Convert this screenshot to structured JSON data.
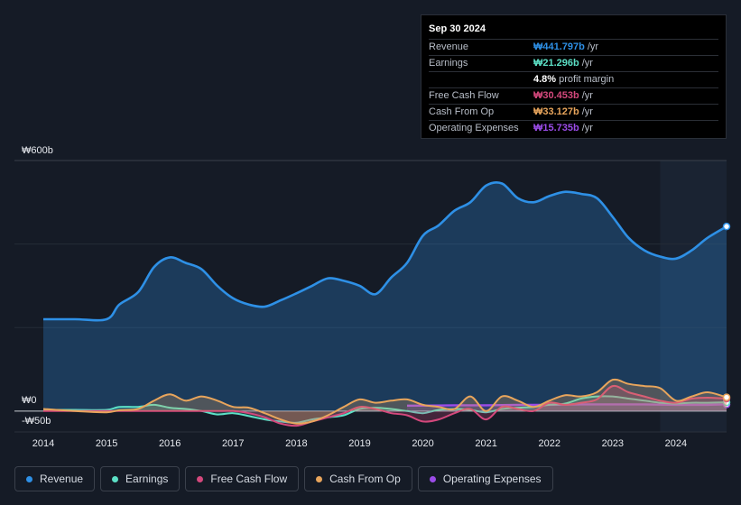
{
  "colors": {
    "revenue": "#2e90e6",
    "earnings": "#5ce0c6",
    "free_cash_flow": "#d4487c",
    "cash_from_op": "#e8a55c",
    "operating_expenses": "#9b4ce8",
    "background": "#151b26"
  },
  "tooltip": {
    "date": "Sep 30 2024",
    "rows": [
      {
        "label": "Revenue",
        "value": "₩441.797b",
        "unit": "/yr",
        "color": "#2e90e6"
      },
      {
        "label": "Earnings",
        "value": "₩21.296b",
        "unit": "/yr",
        "color": "#5ce0c6"
      },
      {
        "label": "",
        "value": "4.8%",
        "unit": "profit margin",
        "color": "#ffffff"
      },
      {
        "label": "Free Cash Flow",
        "value": "₩30.453b",
        "unit": "/yr",
        "color": "#d4487c"
      },
      {
        "label": "Cash From Op",
        "value": "₩33.127b",
        "unit": "/yr",
        "color": "#e8a55c"
      },
      {
        "label": "Operating Expenses",
        "value": "₩15.735b",
        "unit": "/yr",
        "color": "#9b4ce8"
      }
    ]
  },
  "legend": [
    {
      "label": "Revenue",
      "color": "#2e90e6"
    },
    {
      "label": "Earnings",
      "color": "#5ce0c6"
    },
    {
      "label": "Free Cash Flow",
      "color": "#d4487c"
    },
    {
      "label": "Cash From Op",
      "color": "#e8a55c"
    },
    {
      "label": "Operating Expenses",
      "color": "#9b4ce8"
    }
  ],
  "chart_data": {
    "type": "area",
    "y_tick_labels": {
      "top": "₩600b",
      "zero": "₩0",
      "bottom": "-₩50b"
    },
    "ylim": [
      -50,
      600
    ],
    "xlim": [
      2014,
      2024.8
    ],
    "x_tick_labels": [
      "2014",
      "2015",
      "2016",
      "2017",
      "2018",
      "2019",
      "2020",
      "2021",
      "2022",
      "2023",
      "2024"
    ],
    "x_ticks": [
      2014,
      2015,
      2016,
      2017,
      2018,
      2019,
      2020,
      2021,
      2022,
      2023,
      2024
    ],
    "highlight_from": 2023.75,
    "series": [
      {
        "name": "Revenue",
        "key": "revenue",
        "x": [
          2014,
          2014.5,
          2015,
          2015.2,
          2015.5,
          2015.75,
          2016,
          2016.25,
          2016.5,
          2016.75,
          2017,
          2017.25,
          2017.5,
          2017.75,
          2018,
          2018.25,
          2018.5,
          2018.75,
          2019,
          2019.25,
          2019.5,
          2019.75,
          2020,
          2020.25,
          2020.5,
          2020.75,
          2021,
          2021.25,
          2021.5,
          2021.75,
          2022,
          2022.25,
          2022.5,
          2022.75,
          2023,
          2023.25,
          2023.5,
          2023.75,
          2024,
          2024.25,
          2024.5,
          2024.8
        ],
        "values": [
          220,
          220,
          220,
          255,
          285,
          345,
          368,
          355,
          340,
          300,
          270,
          255,
          250,
          265,
          282,
          300,
          318,
          312,
          300,
          280,
          320,
          355,
          420,
          445,
          480,
          500,
          540,
          545,
          510,
          500,
          515,
          525,
          520,
          510,
          465,
          415,
          385,
          370,
          365,
          385,
          415,
          442
        ]
      },
      {
        "name": "Earnings",
        "key": "earnings",
        "x": [
          2014,
          2014.5,
          2015,
          2015.2,
          2015.5,
          2015.75,
          2016,
          2016.25,
          2016.5,
          2016.75,
          2017,
          2017.25,
          2017.5,
          2017.75,
          2018,
          2018.25,
          2018.5,
          2018.75,
          2019,
          2019.25,
          2019.5,
          2019.75,
          2020,
          2020.25,
          2020.5,
          2020.75,
          2021,
          2021.25,
          2021.5,
          2021.75,
          2022,
          2022.25,
          2022.5,
          2022.75,
          2023,
          2023.25,
          2023.5,
          2023.75,
          2024,
          2024.25,
          2024.5,
          2024.8
        ],
        "values": [
          3,
          3,
          3,
          10,
          10,
          15,
          8,
          5,
          0,
          -8,
          -5,
          -12,
          -20,
          -25,
          -28,
          -20,
          -15,
          -10,
          5,
          8,
          5,
          0,
          -5,
          3,
          5,
          3,
          -3,
          5,
          8,
          10,
          15,
          18,
          30,
          35,
          35,
          30,
          25,
          20,
          18,
          20,
          20,
          21
        ]
      },
      {
        "name": "Free Cash Flow",
        "key": "free_cash_flow",
        "x": [
          2014,
          2014.5,
          2015,
          2015.2,
          2015.5,
          2015.75,
          2016,
          2016.25,
          2016.5,
          2016.75,
          2017,
          2017.25,
          2017.5,
          2017.75,
          2018,
          2018.25,
          2018.5,
          2018.75,
          2019,
          2019.25,
          2019.5,
          2019.75,
          2020,
          2020.25,
          2020.5,
          2020.75,
          2021,
          2021.25,
          2021.5,
          2021.75,
          2022,
          2022.25,
          2022.5,
          2022.75,
          2023,
          2023.25,
          2023.5,
          2023.75,
          2024,
          2024.25,
          2024.5,
          2024.8
        ],
        "values": [
          0,
          0,
          0,
          0,
          0,
          0,
          0,
          0,
          0,
          0,
          0,
          -5,
          -15,
          -30,
          -35,
          -25,
          -15,
          -5,
          10,
          5,
          -5,
          -10,
          -25,
          -20,
          -5,
          5,
          -20,
          10,
          5,
          0,
          20,
          15,
          20,
          28,
          60,
          45,
          35,
          25,
          20,
          30,
          32,
          30
        ]
      },
      {
        "name": "Cash From Op",
        "key": "cash_from_op",
        "x": [
          2014,
          2014.5,
          2015,
          2015.2,
          2015.5,
          2015.75,
          2016,
          2016.25,
          2016.5,
          2016.75,
          2017,
          2017.25,
          2017.5,
          2017.75,
          2018,
          2018.25,
          2018.5,
          2018.75,
          2019,
          2019.25,
          2019.5,
          2019.75,
          2020,
          2020.25,
          2020.5,
          2020.75,
          2021,
          2021.25,
          2021.5,
          2021.75,
          2022,
          2022.25,
          2022.5,
          2022.75,
          2023,
          2023.25,
          2023.5,
          2023.75,
          2024,
          2024.25,
          2024.5,
          2024.8
        ],
        "values": [
          5,
          0,
          -3,
          2,
          5,
          25,
          40,
          25,
          35,
          25,
          10,
          8,
          -5,
          -20,
          -30,
          -25,
          -10,
          10,
          28,
          20,
          25,
          28,
          15,
          10,
          5,
          35,
          0,
          35,
          25,
          10,
          25,
          38,
          35,
          45,
          75,
          65,
          60,
          55,
          25,
          35,
          45,
          33
        ]
      },
      {
        "name": "Operating Expenses",
        "key": "operating_expenses",
        "x": [
          2019.75,
          2020,
          2020.5,
          2021,
          2021.5,
          2022,
          2022.5,
          2023,
          2023.5,
          2024,
          2024.5,
          2024.8
        ],
        "values": [
          13,
          13,
          14,
          14,
          15,
          15,
          16,
          16,
          16,
          15,
          15,
          16
        ]
      }
    ]
  }
}
